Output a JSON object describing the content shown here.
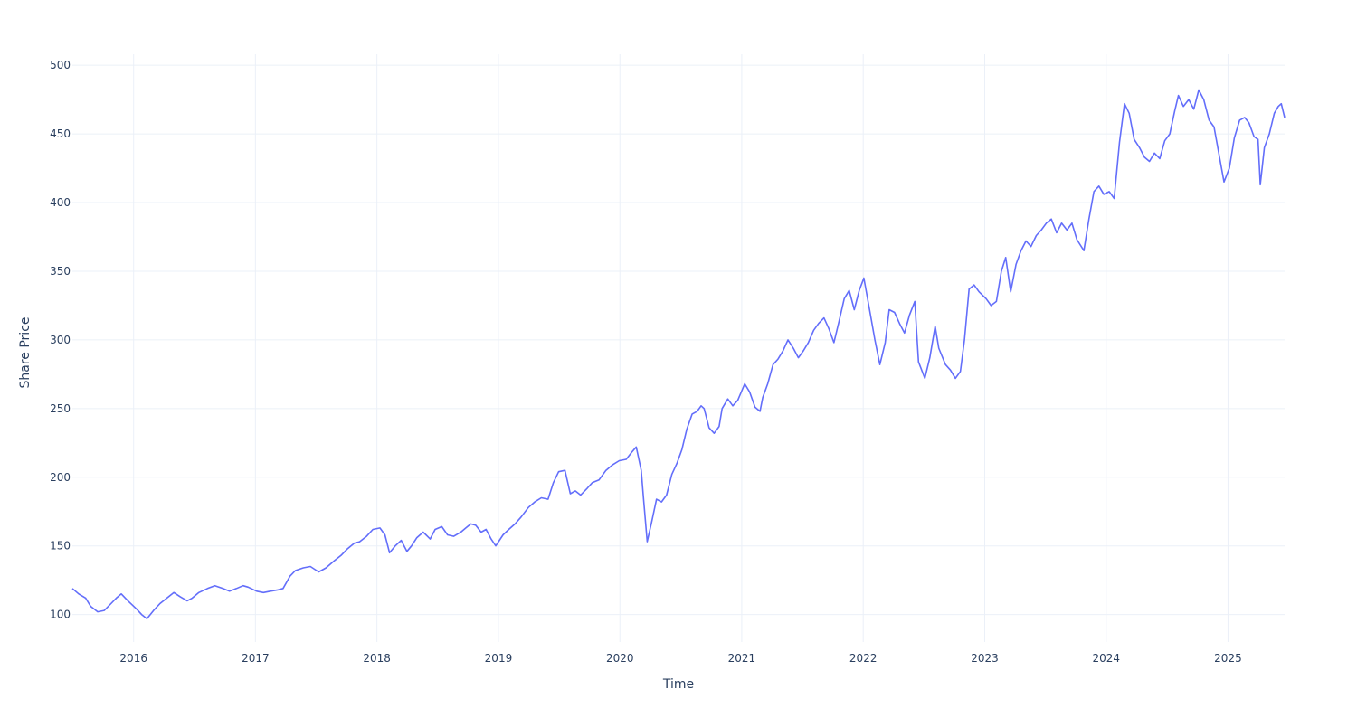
{
  "chart_data": {
    "type": "line",
    "title": "",
    "xlabel": "Time",
    "ylabel": "Share Price",
    "xlim": [
      "2015-07-01",
      "2025-06-20"
    ],
    "ylim": [
      80,
      508
    ],
    "grid": true,
    "legend": "none",
    "colors": {
      "line": "#636efa",
      "grid": "#ebf0f8",
      "text": "#2a3f5f",
      "background": "#ffffff"
    },
    "x_ticks": [
      {
        "date": "2016-01-01",
        "label": "2016"
      },
      {
        "date": "2017-01-01",
        "label": "2017"
      },
      {
        "date": "2018-01-01",
        "label": "2018"
      },
      {
        "date": "2019-01-01",
        "label": "2019"
      },
      {
        "date": "2020-01-01",
        "label": "2020"
      },
      {
        "date": "2021-01-01",
        "label": "2021"
      },
      {
        "date": "2022-01-01",
        "label": "2022"
      },
      {
        "date": "2023-01-01",
        "label": "2023"
      },
      {
        "date": "2024-01-01",
        "label": "2024"
      },
      {
        "date": "2025-01-01",
        "label": "2025"
      }
    ],
    "y_ticks": [
      {
        "value": 100,
        "label": "100"
      },
      {
        "value": 150,
        "label": "150"
      },
      {
        "value": 200,
        "label": "200"
      },
      {
        "value": 250,
        "label": "250"
      },
      {
        "value": 300,
        "label": "300"
      },
      {
        "value": 350,
        "label": "350"
      },
      {
        "value": 400,
        "label": "400"
      },
      {
        "value": 450,
        "label": "450"
      },
      {
        "value": 500,
        "label": "500"
      }
    ],
    "series": [
      {
        "x": [
          "2015-07-01",
          "2015-07-20",
          "2015-08-10",
          "2015-08-25",
          "2015-09-15",
          "2015-10-05",
          "2015-10-25",
          "2015-11-10",
          "2015-11-25",
          "2015-12-15",
          "2016-01-10",
          "2016-01-25",
          "2016-02-10",
          "2016-03-01",
          "2016-03-20",
          "2016-04-10",
          "2016-05-01",
          "2016-05-20",
          "2016-06-10",
          "2016-06-25",
          "2016-07-15",
          "2016-08-10",
          "2016-09-01",
          "2016-09-25",
          "2016-10-15",
          "2016-11-05",
          "2016-11-25",
          "2016-12-10",
          "2017-01-05",
          "2017-01-25",
          "2017-02-15",
          "2017-03-10",
          "2017-03-25",
          "2017-04-15",
          "2017-05-01",
          "2017-05-25",
          "2017-06-15",
          "2017-07-10",
          "2017-08-01",
          "2017-08-25",
          "2017-09-15",
          "2017-10-05",
          "2017-10-25",
          "2017-11-10",
          "2017-12-01",
          "2017-12-20",
          "2018-01-10",
          "2018-01-25",
          "2018-02-08",
          "2018-02-25",
          "2018-03-15",
          "2018-04-01",
          "2018-04-15",
          "2018-05-01",
          "2018-05-20",
          "2018-06-10",
          "2018-06-25",
          "2018-07-15",
          "2018-08-01",
          "2018-08-20",
          "2018-09-10",
          "2018-09-25",
          "2018-10-10",
          "2018-10-25",
          "2018-11-10",
          "2018-11-25",
          "2018-12-10",
          "2018-12-24",
          "2019-01-15",
          "2019-02-01",
          "2019-02-20",
          "2019-03-10",
          "2019-04-01",
          "2019-04-20",
          "2019-05-10",
          "2019-05-30",
          "2019-06-15",
          "2019-07-01",
          "2019-07-20",
          "2019-08-05",
          "2019-08-20",
          "2019-09-05",
          "2019-09-25",
          "2019-10-10",
          "2019-10-30",
          "2019-11-20",
          "2019-12-10",
          "2019-12-30",
          "2020-01-20",
          "2020-02-05",
          "2020-02-19",
          "2020-03-05",
          "2020-03-12",
          "2020-03-23",
          "2020-04-05",
          "2020-04-20",
          "2020-05-05",
          "2020-05-20",
          "2020-06-05",
          "2020-06-20",
          "2020-07-05",
          "2020-07-20",
          "2020-08-05",
          "2020-08-20",
          "2020-09-01",
          "2020-09-10",
          "2020-09-25",
          "2020-10-10",
          "2020-10-25",
          "2020-11-03",
          "2020-11-20",
          "2020-12-05",
          "2020-12-20",
          "2021-01-10",
          "2021-01-25",
          "2021-02-10",
          "2021-02-25",
          "2021-03-05",
          "2021-03-20",
          "2021-04-05",
          "2021-04-20",
          "2021-05-05",
          "2021-05-20",
          "2021-06-05",
          "2021-06-20",
          "2021-07-05",
          "2021-07-20",
          "2021-08-05",
          "2021-08-20",
          "2021-09-05",
          "2021-09-20",
          "2021-10-05",
          "2021-10-20",
          "2021-11-05",
          "2021-11-20",
          "2021-12-05",
          "2021-12-20",
          "2022-01-03",
          "2022-01-20",
          "2022-02-05",
          "2022-02-20",
          "2022-03-08",
          "2022-03-20",
          "2022-04-05",
          "2022-04-20",
          "2022-05-05",
          "2022-05-20",
          "2022-06-05",
          "2022-06-16",
          "2022-07-05",
          "2022-07-20",
          "2022-08-05",
          "2022-08-16",
          "2022-09-05",
          "2022-09-20",
          "2022-10-05",
          "2022-10-20",
          "2022-11-01",
          "2022-11-15",
          "2022-11-30",
          "2022-12-15",
          "2023-01-05",
          "2023-01-20",
          "2023-02-05",
          "2023-02-20",
          "2023-03-05",
          "2023-03-20",
          "2023-04-05",
          "2023-04-20",
          "2023-05-05",
          "2023-05-20",
          "2023-06-05",
          "2023-06-20",
          "2023-07-05",
          "2023-07-20",
          "2023-08-05",
          "2023-08-20",
          "2023-09-05",
          "2023-09-20",
          "2023-10-05",
          "2023-10-26",
          "2023-11-10",
          "2023-11-25",
          "2023-12-10",
          "2023-12-25",
          "2024-01-10",
          "2024-01-25",
          "2024-02-10",
          "2024-02-25",
          "2024-03-10",
          "2024-03-25",
          "2024-04-10",
          "2024-04-25",
          "2024-05-10",
          "2024-05-25",
          "2024-06-10",
          "2024-06-25",
          "2024-07-10",
          "2024-07-25",
          "2024-08-05",
          "2024-08-20",
          "2024-09-05",
          "2024-09-20",
          "2024-10-05",
          "2024-10-20",
          "2024-11-05",
          "2024-11-20",
          "2024-12-05",
          "2024-12-20",
          "2025-01-05",
          "2025-01-20",
          "2025-02-05",
          "2025-02-20",
          "2025-03-05",
          "2025-03-20",
          "2025-04-01",
          "2025-04-08",
          "2025-04-20",
          "2025-05-05",
          "2025-05-20",
          "2025-06-01",
          "2025-06-10",
          "2025-06-20"
        ],
        "y": [
          119,
          115,
          112,
          106,
          102,
          103,
          108,
          112,
          115,
          110,
          104,
          100,
          97,
          103,
          108,
          112,
          116,
          113,
          110,
          112,
          116,
          119,
          121,
          119,
          117,
          119,
          121,
          120,
          117,
          116,
          117,
          118,
          119,
          128,
          132,
          134,
          135,
          131,
          134,
          139,
          143,
          148,
          152,
          153,
          157,
          162,
          163,
          158,
          145,
          150,
          154,
          146,
          150,
          156,
          160,
          155,
          162,
          164,
          158,
          157,
          160,
          163,
          166,
          165,
          160,
          162,
          155,
          150,
          158,
          162,
          166,
          171,
          178,
          182,
          185,
          184,
          196,
          204,
          205,
          188,
          190,
          187,
          192,
          196,
          198,
          205,
          209,
          212,
          213,
          218,
          222,
          205,
          184,
          153,
          167,
          184,
          182,
          187,
          202,
          210,
          220,
          235,
          246,
          248,
          252,
          250,
          236,
          232,
          237,
          250,
          257,
          252,
          256,
          268,
          262,
          251,
          248,
          258,
          268,
          282,
          286,
          292,
          300,
          294,
          287,
          292,
          298,
          307,
          312,
          316,
          308,
          298,
          313,
          330,
          336,
          322,
          336,
          345,
          322,
          300,
          282,
          298,
          322,
          320,
          312,
          305,
          318,
          328,
          284,
          272,
          287,
          310,
          294,
          282,
          278,
          272,
          277,
          300,
          337,
          340,
          335,
          330,
          325,
          328,
          350,
          360,
          335,
          355,
          365,
          372,
          368,
          376,
          380,
          385,
          388,
          378,
          385,
          380,
          385,
          373,
          365,
          388,
          408,
          412,
          406,
          408,
          403,
          444,
          472,
          465,
          446,
          440,
          433,
          430,
          436,
          432,
          445,
          450,
          467,
          478,
          470,
          475,
          468,
          482,
          475,
          460,
          455,
          435,
          415,
          425,
          447,
          460,
          462,
          458,
          448,
          446,
          413,
          440,
          450,
          465,
          470,
          472,
          462
        ]
      }
    ]
  }
}
